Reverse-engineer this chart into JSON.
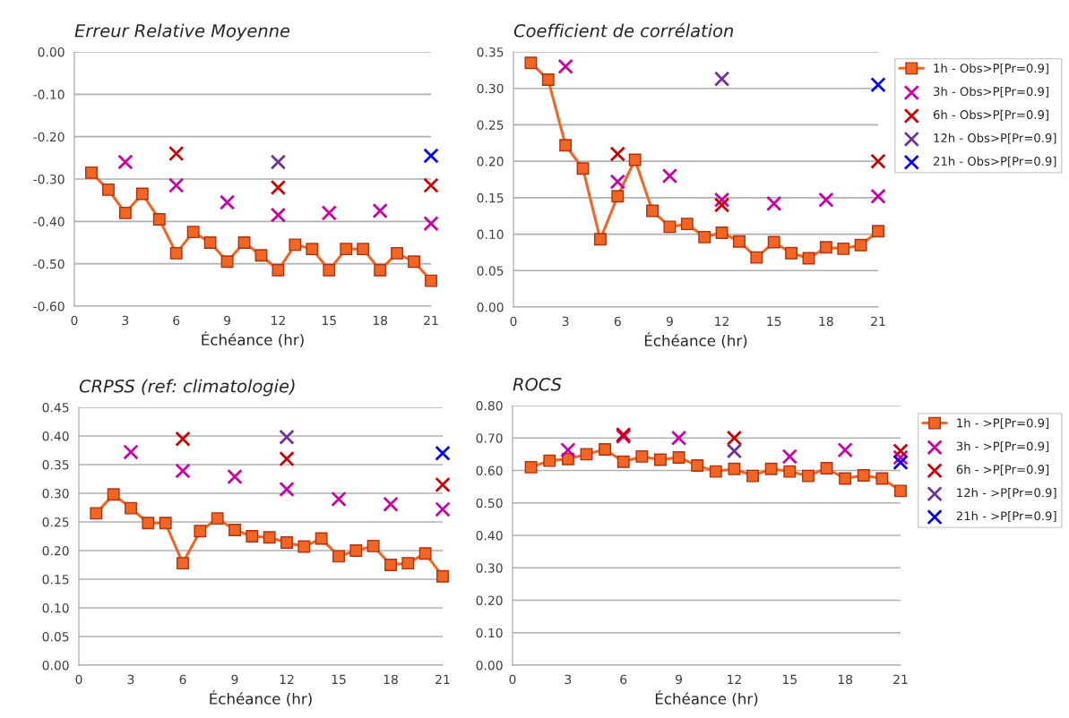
{
  "chart_data": [
    {
      "type": "line",
      "title": "Erreur Relative Moyenne",
      "xlabel": "Échéance (hr)",
      "xlim": [
        0,
        21
      ],
      "xticks": [
        0,
        3,
        6,
        9,
        12,
        15,
        18,
        21
      ],
      "ylim": [
        -0.6,
        0
      ],
      "yticks": [
        {
          "value": -0.6,
          "label": "-0.60"
        },
        {
          "value": -0.5,
          "label": "-0.50"
        },
        {
          "value": -0.4,
          "label": "-0.40"
        },
        {
          "value": -0.3,
          "label": "-0.30"
        },
        {
          "value": -0.2,
          "label": "-0.20"
        },
        {
          "value": -0.1,
          "label": "-0.10"
        },
        {
          "value": 0,
          "label": "0.00"
        }
      ],
      "grid": "y",
      "legend": false,
      "series": [
        {
          "marker": "square",
          "color": "#f26522",
          "x": [
            1,
            2,
            3,
            4,
            5,
            6,
            7,
            8,
            9,
            10,
            11,
            12,
            13,
            14,
            15,
            16,
            17,
            18,
            19,
            20,
            21
          ],
          "values": [
            -0.285,
            -0.325,
            -0.38,
            -0.335,
            -0.395,
            -0.475,
            -0.425,
            -0.45,
            -0.495,
            -0.45,
            -0.48,
            -0.515,
            -0.455,
            -0.465,
            -0.515,
            -0.465,
            -0.465,
            -0.515,
            -0.475,
            -0.495,
            -0.54
          ]
        },
        {
          "type": "scatter",
          "marker": "cross",
          "color": "#cc00aa",
          "x": [
            3,
            6,
            9,
            12,
            15,
            18,
            21
          ],
          "values": [
            -0.26,
            -0.315,
            -0.355,
            -0.385,
            -0.38,
            -0.375,
            -0.405
          ]
        },
        {
          "type": "scatter",
          "marker": "cross",
          "color": "#cc0000",
          "x": [
            6,
            12,
            21
          ],
          "values": [
            -0.24,
            -0.32,
            -0.315
          ]
        },
        {
          "type": "scatter",
          "marker": "cross",
          "color": "#7030a0",
          "x": [
            12
          ],
          "values": [
            -0.26
          ]
        },
        {
          "type": "scatter",
          "marker": "cross",
          "color": "#0000ff",
          "x": [
            21
          ],
          "values": [
            -0.245
          ]
        }
      ]
    },
    {
      "type": "line",
      "title": "Coefficient de corrélation",
      "xlabel": "Échéance (hr)",
      "xlim": [
        0,
        21
      ],
      "xticks": [
        0,
        3,
        6,
        9,
        12,
        15,
        18,
        21
      ],
      "ylim": [
        0,
        0.35
      ],
      "yticks": [
        {
          "value": 0,
          "label": "0.00"
        },
        {
          "value": 0.05,
          "label": "0.05"
        },
        {
          "value": 0.1,
          "label": "0.10"
        },
        {
          "value": 0.15,
          "label": "0.15"
        },
        {
          "value": 0.2,
          "label": "0.20"
        },
        {
          "value": 0.25,
          "label": "0.25"
        },
        {
          "value": 0.3,
          "label": "0.30"
        },
        {
          "value": 0.35,
          "label": "0.35"
        }
      ],
      "grid": "y",
      "legend": "right",
      "series": [
        {
          "name": "1h - Obs>P[Pr=0.9]",
          "marker": "square",
          "color": "#f26522",
          "x": [
            1,
            2,
            3,
            4,
            5,
            6,
            7,
            8,
            9,
            10,
            11,
            12,
            13,
            14,
            15,
            16,
            17,
            18,
            19,
            20,
            21
          ],
          "values": [
            0.335,
            0.312,
            0.222,
            0.19,
            0.093,
            0.152,
            0.202,
            0.132,
            0.11,
            0.114,
            0.096,
            0.102,
            0.09,
            0.068,
            0.089,
            0.074,
            0.067,
            0.082,
            0.08,
            0.085,
            0.104
          ]
        },
        {
          "type": "scatter",
          "name": "3h - Obs>P[Pr=0.9]",
          "marker": "cross",
          "color": "#cc00aa",
          "x": [
            3,
            6,
            9,
            12,
            15,
            18,
            21
          ],
          "values": [
            0.33,
            0.172,
            0.18,
            0.147,
            0.142,
            0.147,
            0.152
          ]
        },
        {
          "type": "scatter",
          "name": "6h - Obs>P[Pr=0.9]",
          "marker": "cross",
          "color": "#cc0000",
          "x": [
            6,
            12,
            21
          ],
          "values": [
            0.21,
            0.14,
            0.2
          ]
        },
        {
          "type": "scatter",
          "name": "12h - Obs>P[Pr=0.9]",
          "marker": "cross",
          "color": "#7030a0",
          "x": [
            12
          ],
          "values": [
            0.313
          ]
        },
        {
          "type": "scatter",
          "name": "21h - Obs>P[Pr=0.9]",
          "marker": "cross",
          "color": "#0000ff",
          "x": [
            21
          ],
          "values": [
            0.305
          ]
        }
      ]
    },
    {
      "type": "line",
      "title": "CRPSS (ref: climatologie)",
      "xlabel": "Échéance (hr)",
      "xlim": [
        0,
        21
      ],
      "xticks": [
        0,
        3,
        6,
        9,
        12,
        15,
        18,
        21
      ],
      "ylim": [
        0,
        0.45
      ],
      "yticks": [
        {
          "value": 0,
          "label": "0.00"
        },
        {
          "value": 0.05,
          "label": "0.05"
        },
        {
          "value": 0.1,
          "label": "0.10"
        },
        {
          "value": 0.15,
          "label": "0.15"
        },
        {
          "value": 0.2,
          "label": "0.20"
        },
        {
          "value": 0.25,
          "label": "0.25"
        },
        {
          "value": 0.3,
          "label": "0.30"
        },
        {
          "value": 0.35,
          "label": "0.35"
        },
        {
          "value": 0.4,
          "label": "0.40"
        },
        {
          "value": 0.45,
          "label": "0.45"
        }
      ],
      "grid": "y",
      "legend": false,
      "series": [
        {
          "marker": "square",
          "color": "#f26522",
          "x": [
            1,
            2,
            3,
            4,
            5,
            6,
            7,
            8,
            9,
            10,
            11,
            12,
            13,
            14,
            15,
            16,
            17,
            18,
            19,
            20,
            21
          ],
          "values": [
            0.265,
            0.298,
            0.274,
            0.248,
            0.248,
            0.178,
            0.234,
            0.256,
            0.236,
            0.225,
            0.223,
            0.214,
            0.207,
            0.221,
            0.19,
            0.2,
            0.208,
            0.175,
            0.178,
            0.195,
            0.155
          ]
        },
        {
          "type": "scatter",
          "marker": "cross",
          "color": "#cc00aa",
          "x": [
            3,
            6,
            9,
            12,
            15,
            18,
            21
          ],
          "values": [
            0.372,
            0.339,
            0.329,
            0.307,
            0.29,
            0.281,
            0.272
          ]
        },
        {
          "type": "scatter",
          "marker": "cross",
          "color": "#cc0000",
          "x": [
            6,
            12,
            21
          ],
          "values": [
            0.395,
            0.36,
            0.315
          ]
        },
        {
          "type": "scatter",
          "marker": "cross",
          "color": "#7030a0",
          "x": [
            12
          ],
          "values": [
            0.398
          ]
        },
        {
          "type": "scatter",
          "marker": "cross",
          "color": "#0000ff",
          "x": [
            21
          ],
          "values": [
            0.37
          ]
        }
      ]
    },
    {
      "type": "line",
      "title": "ROCS",
      "xlabel": "Échéance (hr)",
      "xlim": [
        0,
        21
      ],
      "xticks": [
        0,
        3,
        6,
        9,
        12,
        15,
        18,
        21
      ],
      "ylim": [
        0,
        0.8
      ],
      "yticks": [
        {
          "value": 0,
          "label": "0.00"
        },
        {
          "value": 0.1,
          "label": "0.10"
        },
        {
          "value": 0.2,
          "label": "0.20"
        },
        {
          "value": 0.3,
          "label": "0.30"
        },
        {
          "value": 0.4,
          "label": "0.40"
        },
        {
          "value": 0.5,
          "label": "0.50"
        },
        {
          "value": 0.6,
          "label": "0.60"
        },
        {
          "value": 0.7,
          "label": "0.70"
        },
        {
          "value": 0.8,
          "label": "0.80"
        }
      ],
      "grid": "y",
      "legend": "right",
      "series": [
        {
          "name": "1h - >P[Pr=0.9]",
          "marker": "square",
          "color": "#f26522",
          "x": [
            1,
            2,
            3,
            4,
            5,
            6,
            7,
            8,
            9,
            10,
            11,
            12,
            13,
            14,
            15,
            16,
            17,
            18,
            19,
            20,
            21
          ],
          "values": [
            0.61,
            0.63,
            0.635,
            0.65,
            0.665,
            0.627,
            0.643,
            0.633,
            0.64,
            0.615,
            0.597,
            0.605,
            0.583,
            0.605,
            0.597,
            0.583,
            0.607,
            0.575,
            0.585,
            0.575,
            0.537
          ]
        },
        {
          "type": "scatter",
          "name": "3h - >P[Pr=0.9]",
          "marker": "cross",
          "color": "#cc00aa",
          "x": [
            3,
            6,
            9,
            15,
            18,
            21
          ],
          "values": [
            0.663,
            0.705,
            0.7,
            0.643,
            0.663,
            0.64
          ]
        },
        {
          "type": "scatter",
          "name": "6h - >P[Pr=0.9]",
          "marker": "cross",
          "color": "#cc0000",
          "x": [
            6,
            12,
            21
          ],
          "values": [
            0.71,
            0.7,
            0.66
          ]
        },
        {
          "type": "scatter",
          "name": "12h - >P[Pr=0.9]",
          "marker": "cross",
          "color": "#7030a0",
          "x": [
            12
          ],
          "values": [
            0.66
          ]
        },
        {
          "type": "scatter",
          "name": "21h - >P[Pr=0.9]",
          "marker": "cross",
          "color": "#0000ff",
          "x": [
            21
          ],
          "values": [
            0.625
          ]
        }
      ]
    }
  ]
}
